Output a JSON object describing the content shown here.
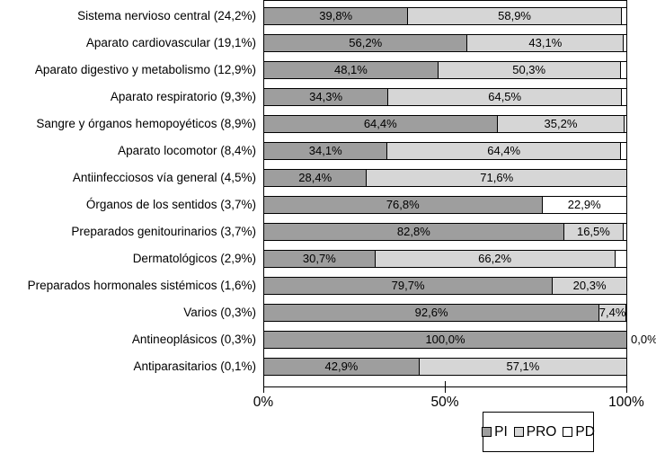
{
  "colors": {
    "pi": "#9E9E9E",
    "pro": "#D6D6D6",
    "pd": "#FFFFFF",
    "border": "#000000",
    "text": "#000000",
    "background": "#FFFFFF"
  },
  "chart_data": {
    "type": "bar",
    "orientation": "horizontal",
    "stacked": true,
    "title": "",
    "xlabel": "",
    "ylabel": "",
    "xlim": [
      0,
      100
    ],
    "x_axis": {
      "ticks": [
        {
          "label": "0%",
          "value": 0
        },
        {
          "label": "50%",
          "value": 50
        },
        {
          "label": "100%",
          "value": 100
        }
      ]
    },
    "series": [
      {
        "name": "PI",
        "key": "pi",
        "color": "#9E9E9E"
      },
      {
        "name": "PRO",
        "key": "pro",
        "color": "#D6D6D6"
      },
      {
        "name": "PD",
        "key": "pd",
        "color": "#FFFFFF"
      }
    ],
    "legend": {
      "position": "bottom-right",
      "entries": [
        "PI",
        "PRO",
        "PD"
      ]
    },
    "rows": [
      {
        "category": "Sistema nervioso central (24,2%)",
        "pi": 39.8,
        "pro": 58.9,
        "pd": 1.3,
        "labels": {
          "pi": "39,8%",
          "pro": "58,9%",
          "pd": ""
        },
        "outside_label": ""
      },
      {
        "category": "Aparato cardiovascular (19,1%)",
        "pi": 56.2,
        "pro": 43.1,
        "pd": 0.7,
        "labels": {
          "pi": "56,2%",
          "pro": "43,1%",
          "pd": ""
        },
        "outside_label": ""
      },
      {
        "category": "Aparato digestivo y metabolismo (12,9%)",
        "pi": 48.1,
        "pro": 50.3,
        "pd": 1.6,
        "labels": {
          "pi": "48,1%",
          "pro": "50,3%",
          "pd": ""
        },
        "outside_label": ""
      },
      {
        "category": "Aparato respiratorio (9,3%)",
        "pi": 34.3,
        "pro": 64.5,
        "pd": 1.2,
        "labels": {
          "pi": "34,3%",
          "pro": "64,5%",
          "pd": ""
        },
        "outside_label": ""
      },
      {
        "category": "Sangre y órganos hemopoyéticos (8,9%)",
        "pi": 64.4,
        "pro": 35.2,
        "pd": 0.4,
        "labels": {
          "pi": "64,4%",
          "pro": "35,2%",
          "pd": ""
        },
        "outside_label": ""
      },
      {
        "category": "Aparato locomotor (8,4%)",
        "pi": 34.1,
        "pro": 64.4,
        "pd": 1.5,
        "labels": {
          "pi": "34,1%",
          "pro": "64,4%",
          "pd": ""
        },
        "outside_label": ""
      },
      {
        "category": "Antiinfecciosos vía general (4,5%)",
        "pi": 28.4,
        "pro": 71.6,
        "pd": 0.0,
        "labels": {
          "pi": "28,4%",
          "pro": "71,6%",
          "pd": ""
        },
        "outside_label": ""
      },
      {
        "category": "Órganos de los sentidos (3,7%)",
        "pi": 76.8,
        "pro": 0.0,
        "pd": 22.9,
        "labels": {
          "pi": "76,8%",
          "pro": "",
          "pd": "22,9%"
        },
        "outside_label": ""
      },
      {
        "category": "Preparados genitourinarios (3,7%)",
        "pi": 82.8,
        "pro": 16.5,
        "pd": 0.7,
        "labels": {
          "pi": "82,8%",
          "pro": "16,5%",
          "pd": ""
        },
        "outside_label": ""
      },
      {
        "category": "Dermatológicos (2,9%)",
        "pi": 30.7,
        "pro": 66.2,
        "pd": 3.1,
        "labels": {
          "pi": "30,7%",
          "pro": "66,2%",
          "pd": ""
        },
        "outside_label": ""
      },
      {
        "category": "Preparados hormonales sistémicos (1,6%)",
        "pi": 79.7,
        "pro": 20.3,
        "pd": 0.0,
        "labels": {
          "pi": "79,7%",
          "pro": "20,3%",
          "pd": ""
        },
        "outside_label": ""
      },
      {
        "category": "Varios (0,3%)",
        "pi": 92.6,
        "pro": 7.4,
        "pd": 0.0,
        "labels": {
          "pi": "92,6%",
          "pro": "7,4%",
          "pd": ""
        },
        "outside_label": ""
      },
      {
        "category": "Antineoplásicos (0,3%)",
        "pi": 100.0,
        "pro": 0.0,
        "pd": 0.0,
        "labels": {
          "pi": "100,0%",
          "pro": "",
          "pd": ""
        },
        "outside_label": "0,0%"
      },
      {
        "category": "Antiparasitarios (0,1%)",
        "pi": 42.9,
        "pro": 57.1,
        "pd": 0.0,
        "labels": {
          "pi": "42,9%",
          "pro": "57,1%",
          "pd": ""
        },
        "outside_label": ""
      }
    ]
  }
}
